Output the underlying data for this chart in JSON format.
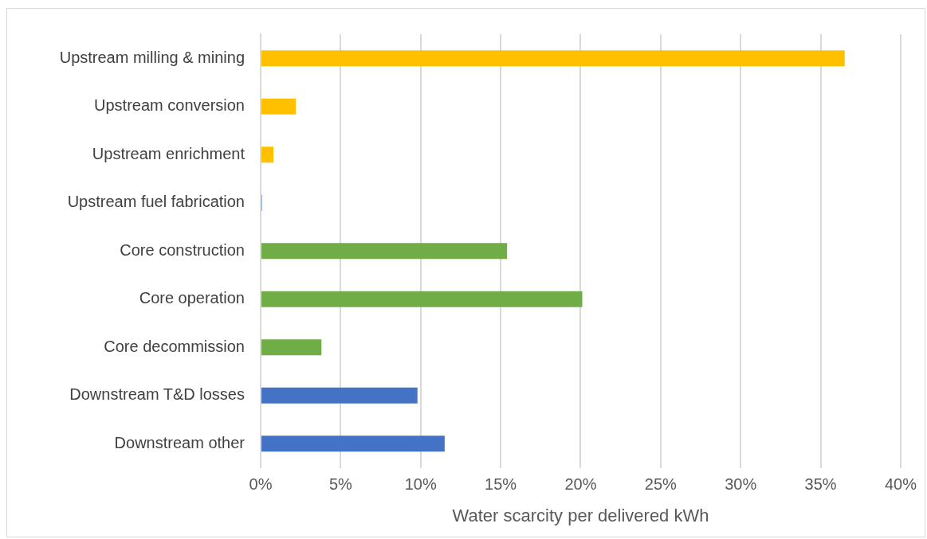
{
  "chart_data": {
    "type": "bar",
    "orientation": "horizontal",
    "xlabel": "Water scarcity per delivered kWh",
    "categories": [
      "Upstream milling & mining",
      "Upstream conversion",
      "Upstream enrichment",
      "Upstream fuel fabrication",
      "Core construction",
      "Core operation",
      "Core decommission",
      "Downstream T&D losses",
      "Downstream other"
    ],
    "values": [
      36.5,
      2.2,
      0.8,
      0.1,
      15.4,
      20.1,
      3.8,
      9.8,
      11.5
    ],
    "colors": [
      "#ffc000",
      "#ffc000",
      "#ffc000",
      "#8faadc",
      "#70ad47",
      "#70ad47",
      "#70ad47",
      "#4472c4",
      "#4472c4"
    ],
    "xlim": [
      0,
      40
    ],
    "xticks": [
      {
        "value": 0,
        "label": "0%"
      },
      {
        "value": 5,
        "label": "5%"
      },
      {
        "value": 10,
        "label": "10%"
      },
      {
        "value": 15,
        "label": "15%"
      },
      {
        "value": 20,
        "label": "20%"
      },
      {
        "value": 25,
        "label": "25%"
      },
      {
        "value": 30,
        "label": "30%"
      },
      {
        "value": 35,
        "label": "35%"
      },
      {
        "value": 40,
        "label": "40%"
      }
    ],
    "grid": "x",
    "legend": false
  }
}
